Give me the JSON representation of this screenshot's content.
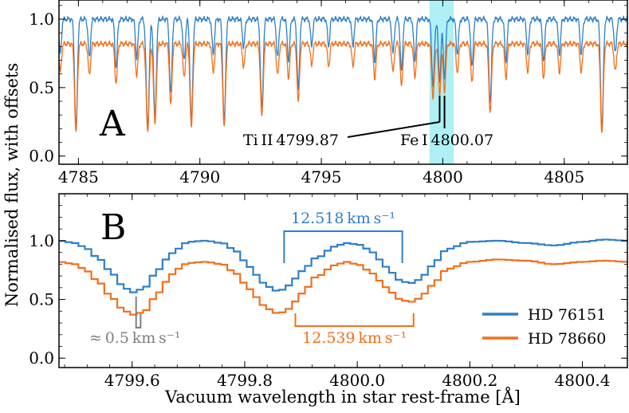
{
  "chart_data": [
    {
      "panel_label": "A",
      "type": "line",
      "xlim": [
        4784.2,
        4807.6
      ],
      "ylim": [
        -0.06,
        1.14
      ],
      "x_ticks": [
        4785,
        4790,
        4795,
        4800,
        4805
      ],
      "x_tick_labels": [
        "4785",
        "4790",
        "4795",
        "4800",
        "4805"
      ],
      "y_ticks": [
        0.0,
        0.5,
        1.0
      ],
      "y_tick_labels": [
        "0.0",
        "0.5",
        "1.0"
      ],
      "highlight_span": [
        4799.45,
        4800.45
      ],
      "continuum": [
        {
          "name": "HD 76151",
          "level": 1.0
        },
        {
          "name": "HD 78660",
          "level": 0.82
        }
      ],
      "absorption_lines": [
        {
          "x": 4784.25,
          "depth": 0.25,
          "width": 0.05
        },
        {
          "x": 4784.9,
          "depth": 0.8,
          "width": 0.055
        },
        {
          "x": 4785.45,
          "depth": 0.28,
          "width": 0.05
        },
        {
          "x": 4786.55,
          "depth": 0.35,
          "width": 0.05
        },
        {
          "x": 4787.4,
          "depth": 0.28,
          "width": 0.05
        },
        {
          "x": 4787.85,
          "depth": 0.78,
          "width": 0.06
        },
        {
          "x": 4788.15,
          "depth": 0.72,
          "width": 0.055
        },
        {
          "x": 4788.8,
          "depth": 0.55,
          "width": 0.05
        },
        {
          "x": 4789.35,
          "depth": 0.3,
          "width": 0.05
        },
        {
          "x": 4789.65,
          "depth": 0.75,
          "width": 0.055
        },
        {
          "x": 4790.55,
          "depth": 0.25,
          "width": 0.05
        },
        {
          "x": 4791.0,
          "depth": 0.75,
          "width": 0.055
        },
        {
          "x": 4791.8,
          "depth": 0.2,
          "width": 0.05
        },
        {
          "x": 4792.55,
          "depth": 0.65,
          "width": 0.055
        },
        {
          "x": 4793.2,
          "depth": 0.28,
          "width": 0.05
        },
        {
          "x": 4793.65,
          "depth": 0.3,
          "width": 0.05
        },
        {
          "x": 4794.05,
          "depth": 0.52,
          "width": 0.05
        },
        {
          "x": 4794.6,
          "depth": 0.2,
          "width": 0.045
        },
        {
          "x": 4795.3,
          "depth": 0.2,
          "width": 0.045
        },
        {
          "x": 4796.3,
          "depth": 0.2,
          "width": 0.045
        },
        {
          "x": 4797.2,
          "depth": 0.3,
          "width": 0.05
        },
        {
          "x": 4797.95,
          "depth": 0.25,
          "width": 0.05
        },
        {
          "x": 4798.3,
          "depth": 0.38,
          "width": 0.05
        },
        {
          "x": 4798.85,
          "depth": 0.3,
          "width": 0.05
        },
        {
          "x": 4799.6,
          "depth": 0.48,
          "width": 0.055
        },
        {
          "x": 4799.87,
          "depth": 0.45,
          "width": 0.05
        },
        {
          "x": 4800.07,
          "depth": 0.42,
          "width": 0.05
        },
        {
          "x": 4800.6,
          "depth": 0.25,
          "width": 0.05
        },
        {
          "x": 4801.2,
          "depth": 0.35,
          "width": 0.05
        },
        {
          "x": 4801.95,
          "depth": 0.6,
          "width": 0.055
        },
        {
          "x": 4802.6,
          "depth": 0.3,
          "width": 0.05
        },
        {
          "x": 4803.5,
          "depth": 0.25,
          "width": 0.05
        },
        {
          "x": 4804.15,
          "depth": 0.3,
          "width": 0.05
        },
        {
          "x": 4804.8,
          "depth": 0.25,
          "width": 0.05
        },
        {
          "x": 4805.7,
          "depth": 0.25,
          "width": 0.05
        },
        {
          "x": 4806.55,
          "depth": 0.8,
          "width": 0.055
        },
        {
          "x": 4807.1,
          "depth": 0.25,
          "width": 0.05
        }
      ],
      "annotations": [
        {
          "label": "Ti II 4799.87",
          "x": 4799.87
        },
        {
          "label": "Fe I 4800.07",
          "x": 4800.07
        }
      ]
    },
    {
      "panel_label": "B",
      "type": "line",
      "xlim": [
        4799.47,
        4800.48
      ],
      "ylim": [
        -0.08,
        1.4
      ],
      "x_ticks": [
        4799.6,
        4799.8,
        4800.0,
        4800.2,
        4800.4
      ],
      "x_tick_labels": [
        "4799.6",
        "4799.8",
        "4800.0",
        "4800.2",
        "4800.4"
      ],
      "y_ticks": [
        0.0,
        0.5,
        1.0
      ],
      "y_tick_labels": [
        "0.0",
        "0.5",
        "1.0"
      ],
      "xlabel": "Vacuum wavelength in star rest-frame [Å]",
      "series": [
        {
          "name": "HD 76151",
          "color": "#2f7fc8",
          "x": [
            4799.47,
            4799.5,
            4799.52,
            4799.54,
            4799.56,
            4799.58,
            4799.6,
            4799.62,
            4799.64,
            4799.66,
            4799.68,
            4799.7,
            4799.73,
            4799.76,
            4799.78,
            4799.8,
            4799.82,
            4799.84,
            4799.86,
            4799.88,
            4799.9,
            4799.93,
            4799.96,
            4799.98,
            4800.0,
            4800.02,
            4800.04,
            4800.06,
            4800.08,
            4800.1,
            4800.12,
            4800.14,
            4800.16,
            4800.2,
            4800.25,
            4800.3,
            4800.35,
            4800.4,
            4800.44,
            4800.48
          ],
          "y": [
            1.0,
            0.98,
            0.93,
            0.85,
            0.75,
            0.63,
            0.56,
            0.59,
            0.71,
            0.84,
            0.93,
            0.99,
            1.0,
            0.98,
            0.93,
            0.83,
            0.71,
            0.61,
            0.57,
            0.62,
            0.74,
            0.86,
            0.95,
            0.98,
            0.97,
            0.93,
            0.84,
            0.73,
            0.65,
            0.64,
            0.71,
            0.83,
            0.93,
            0.99,
            1.0,
            0.98,
            0.96,
            0.99,
            1.01,
            1.0
          ]
        },
        {
          "name": "HD 78660",
          "color": "#f26f1c",
          "x": [
            4799.47,
            4799.5,
            4799.52,
            4799.54,
            4799.56,
            4799.58,
            4799.6,
            4799.62,
            4799.64,
            4799.66,
            4799.68,
            4799.7,
            4799.73,
            4799.76,
            4799.78,
            4799.8,
            4799.82,
            4799.84,
            4799.86,
            4799.88,
            4799.9,
            4799.93,
            4799.96,
            4799.98,
            4800.0,
            4800.02,
            4800.04,
            4800.06,
            4800.08,
            4800.1,
            4800.12,
            4800.14,
            4800.16,
            4800.2,
            4800.25,
            4800.3,
            4800.35,
            4800.4,
            4800.44,
            4800.48
          ],
          "y": [
            0.82,
            0.8,
            0.74,
            0.65,
            0.54,
            0.43,
            0.37,
            0.39,
            0.51,
            0.65,
            0.76,
            0.81,
            0.82,
            0.8,
            0.74,
            0.64,
            0.52,
            0.42,
            0.38,
            0.42,
            0.55,
            0.7,
            0.79,
            0.82,
            0.8,
            0.75,
            0.66,
            0.56,
            0.49,
            0.48,
            0.55,
            0.66,
            0.76,
            0.82,
            0.84,
            0.83,
            0.8,
            0.82,
            0.83,
            0.82
          ]
        }
      ],
      "annotations": [
        {
          "label": "12.518 km s⁻¹",
          "x_start": 4799.87,
          "x_end": 4800.08,
          "color": "#2f7fc8"
        },
        {
          "label": "12.539 km s⁻¹",
          "x_start": 4799.89,
          "x_end": 4800.1,
          "color": "#f26f1c"
        },
        {
          "label": "≈ 0.5 km s⁻¹",
          "x_start": 4799.607,
          "x_end": 4799.615,
          "color": "#7f7f7f"
        }
      ],
      "legend": {
        "location": "lower-right"
      }
    }
  ],
  "shared_ylabel": "Normalised flux, with offsets"
}
